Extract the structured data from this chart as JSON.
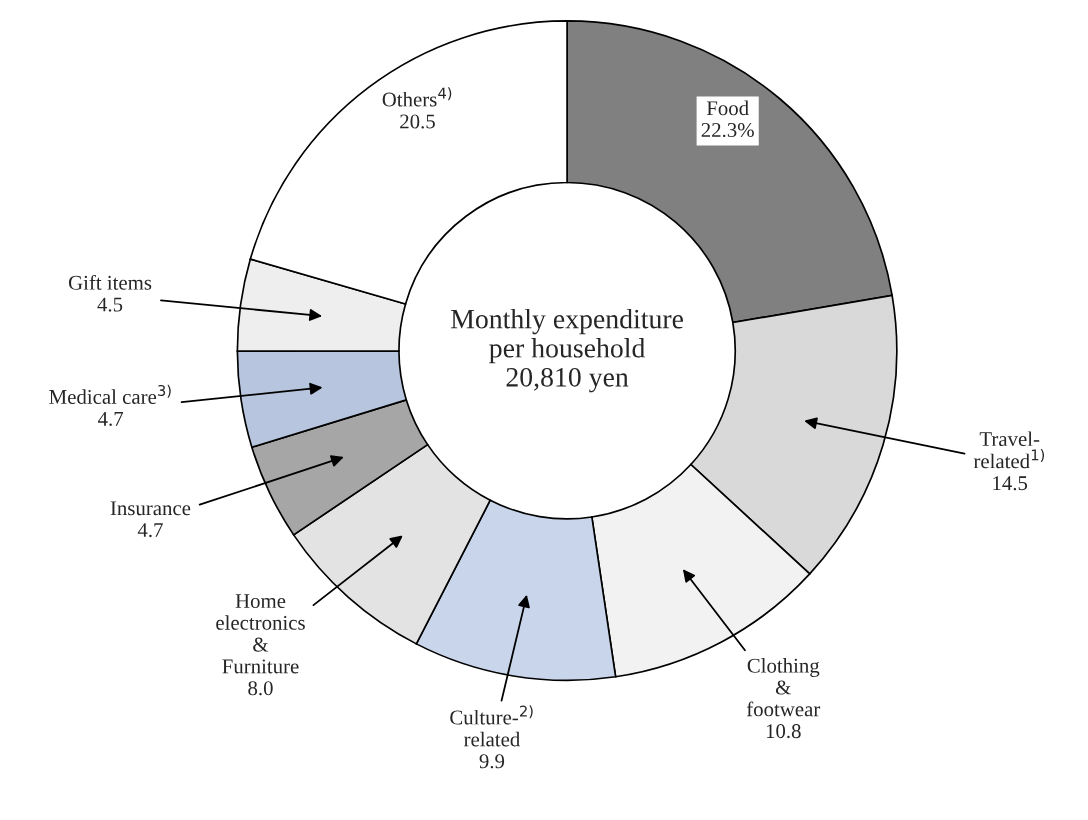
{
  "chart_data": {
    "type": "donut",
    "categories": [
      "Food",
      "Travel-\nrelated$^{1)}$",
      "Clothing\n&\nfootwear",
      "Culture-$^{2)}$\nrelated",
      "Home\nelectronics\n&\nFurniture",
      "Insurance",
      "Medical care$^{3)}$",
      "Gift items",
      "Others$^{4)}$"
    ],
    "values": [
      22.3,
      14.5,
      10.8,
      9.9,
      8.0,
      4.7,
      4.7,
      4.5,
      20.5
    ],
    "value_labels": [
      "22.3%",
      "14.5",
      "10.8",
      "9.9",
      "8.0",
      "4.7",
      "4.7",
      "4.5",
      "20.5"
    ],
    "colors": [
      "#808080",
      "#d9d9d9",
      "#f2f2f2",
      "#c9d5ea",
      "#e3e3e3",
      "#a6a6a6",
      "#b7c6de",
      "#eeeeee",
      "#ffffff"
    ],
    "annotations": [
      "Monthly expenditure\nper household\n20,810 yen"
    ],
    "legend": false
  }
}
